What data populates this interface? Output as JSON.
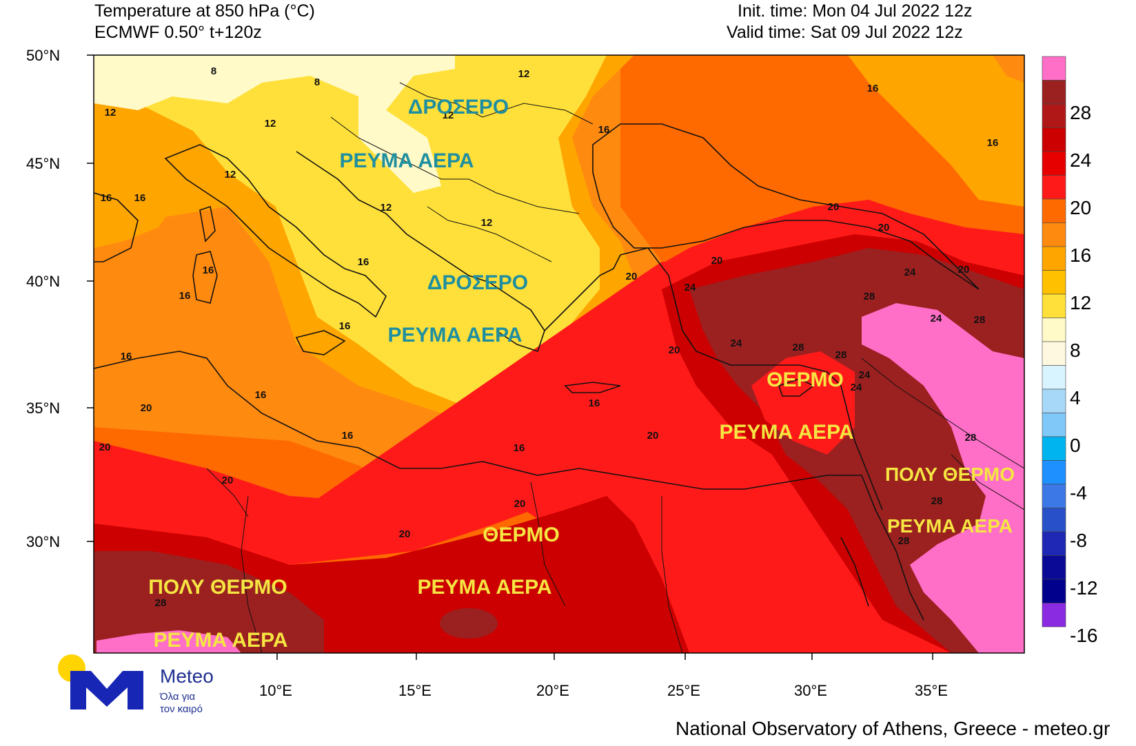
{
  "header": {
    "title_line1": "Temperature at 850 hPa (°C)",
    "title_line2": "ECMWF 0.50° t+120z",
    "init_time": "Init. time: Mon 04 Jul 2022 12z",
    "valid_time": "Valid time: Sat 09 Jul 2022 12z"
  },
  "axes": {
    "lat_labels": [
      "50°N",
      "45°N",
      "40°N",
      "35°N",
      "30°N"
    ],
    "lon_labels": [
      "10°E",
      "15°E",
      "20°E",
      "25°E",
      "30°E",
      "35°E"
    ]
  },
  "colorbar": {
    "colors": [
      "#ff6ec7",
      "#9b2020",
      "#b01818",
      "#cc0000",
      "#e60000",
      "#ff1a1a",
      "#ff6a00",
      "#ff8a10",
      "#ffa500",
      "#ffc000",
      "#ffe03a",
      "#fffac8",
      "#fff8e0",
      "#d8f4ff",
      "#a8d8f8",
      "#80c8f8",
      "#00b4f0",
      "#1e90ff",
      "#3c78e6",
      "#2850c8",
      "#1e28b4",
      "#0a0a96",
      "#00008c",
      "#8a2be2"
    ],
    "labels": [
      "28",
      "24",
      "20",
      "16",
      "12",
      "8",
      "4",
      "0",
      "-4",
      "-8",
      "-12",
      "-16"
    ]
  },
  "annotations": [
    {
      "text": "ΔΡΟΣΕΡΟ",
      "color": "#1f8fa0"
    },
    {
      "text": "ΡΕΥΜΑ ΑΕΡΑ",
      "color": "#1f8fa0"
    },
    {
      "text": "ΔΡΟΣΕΡΟ",
      "color": "#1f8fa0"
    },
    {
      "text": "ΡΕΥΜΑ ΑΕΡΑ",
      "color": "#1f8fa0"
    },
    {
      "text": "ΘΕΡΜΟ",
      "color": "#f5e642"
    },
    {
      "text": "ΡΕΥΜΑ ΑΕΡΑ",
      "color": "#f5e642"
    },
    {
      "text": "ΠΟΛΥ ΘΕΡΜΟ",
      "color": "#f5e642"
    },
    {
      "text": "ΡΕΥΜΑ ΑΕΡΑ",
      "color": "#f5e642"
    },
    {
      "text": "ΘΕΡΜΟ",
      "color": "#f5e642"
    },
    {
      "text": "ΡΕΥΜΑ ΑΕΡΑ",
      "color": "#f5e642"
    },
    {
      "text": "ΠΟΛΥ ΘΕΡΜΟ",
      "color": "#f5e642"
    },
    {
      "text": "ΡΕΥΜΑ ΑΕΡΑ",
      "color": "#f5e642"
    }
  ],
  "contour_labels": [
    "8",
    "8",
    "12",
    "12",
    "12",
    "12",
    "12",
    "12",
    "12",
    "16",
    "16",
    "16",
    "16",
    "16",
    "16",
    "16",
    "16",
    "16",
    "16",
    "16",
    "16",
    "16",
    "16",
    "20",
    "20",
    "20",
    "20",
    "20",
    "20",
    "20",
    "20",
    "20",
    "20",
    "20",
    "20",
    "24",
    "24",
    "24",
    "24",
    "24",
    "24",
    "28",
    "28",
    "28",
    "28",
    "28",
    "28",
    "28",
    "28",
    "28"
  ],
  "logo": {
    "name": "Meteo",
    "tagline_line1": "Όλα για",
    "tagline_line2": "τον καιρό"
  },
  "footer": "National Observatory of Athens, Greece - meteo.gr"
}
